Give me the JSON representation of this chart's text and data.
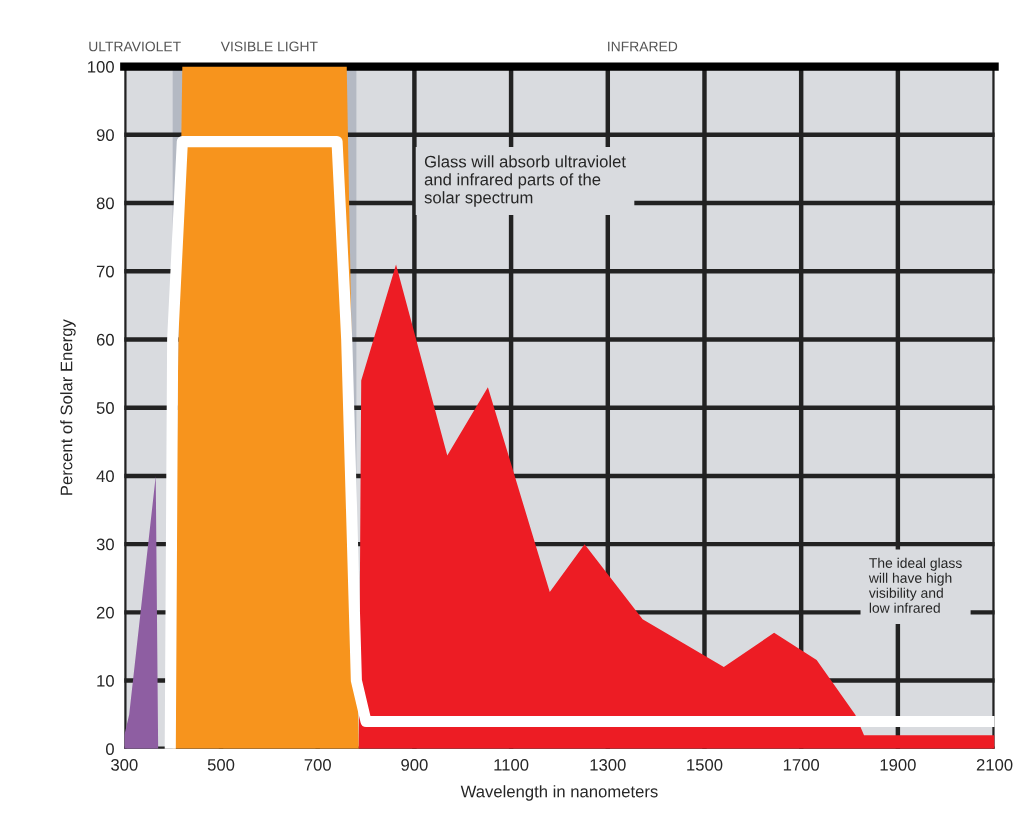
{
  "chart_data": {
    "type": "area",
    "xlabel": "Wavelength in nanometers",
    "ylabel": "Percent of Solar Energy",
    "annotations": [
      "ULTRAVIOLET",
      "VISIBLE LIGHT",
      "INFRARED",
      "Glass will absorb ultraviolet\nand infrared parts of the\nsolar spectrum",
      "The ideal glass\nwill have high\nvisibility and\nlow infrared"
    ],
    "series": [
      {
        "color": "#8e5ea2",
        "x": [
          300,
          310,
          365,
          370
        ],
        "values": [
          2,
          5,
          40,
          0
        ]
      },
      {
        "color": "#f7941d",
        "x": [
          400,
          420,
          760,
          785
        ],
        "values": [
          0,
          100,
          100,
          0
        ]
      },
      {
        "color": "#ed1c24",
        "x": [
          785,
          790,
          862,
          968,
          1052,
          1180,
          1252,
          1372,
          1540,
          1644,
          1732,
          1812,
          1830,
          2100
        ],
        "values": [
          0,
          54,
          71,
          43,
          53,
          23,
          30,
          19,
          12,
          17,
          13,
          5,
          2,
          2
        ]
      },
      {
        "type": "line",
        "color": "#ffffff",
        "x": [
          395,
          400,
          420,
          740,
          760,
          780,
          800,
          2100
        ],
        "values": [
          0,
          60,
          89,
          89,
          60,
          10,
          4,
          4
        ]
      }
    ],
    "bands": [
      {
        "axis": "x",
        "from": 400,
        "to": 780,
        "color": "#b4b9c3"
      }
    ],
    "xlim": [
      300,
      2100
    ],
    "xticks": [
      300,
      500,
      700,
      900,
      1100,
      1300,
      1500,
      1700,
      1900,
      2100
    ],
    "ylim": [
      0,
      100
    ],
    "yticks": [
      0,
      10,
      20,
      30,
      40,
      50,
      60,
      70,
      80,
      90,
      100
    ],
    "grid": true,
    "legend": false
  }
}
